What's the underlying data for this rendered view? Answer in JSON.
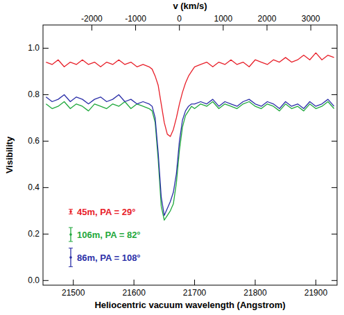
{
  "chart_data": {
    "type": "line",
    "x_label": "Heliocentric vacuum wavelength (Angstrom)",
    "y_label": "Visibility",
    "x2_label": "v (km/s)",
    "xlim": [
      21450,
      21935
    ],
    "xticks": [
      21500,
      21600,
      21700,
      21800,
      21900
    ],
    "x2lim": [
      -3115,
      3600
    ],
    "x2ticks": [
      -2000,
      -1000,
      0,
      1000,
      2000,
      3000
    ],
    "ylim": [
      -0.02,
      1.1
    ],
    "yticks": [
      {
        "value": 0,
        "label": "0.0"
      },
      0.2,
      0.4,
      0.6,
      0.8,
      {
        "value": 1,
        "label": "1.0"
      }
    ],
    "legend": "lower left",
    "x": [
      21455,
      21465,
      21475,
      21485,
      21495,
      21505,
      21515,
      21525,
      21535,
      21545,
      21555,
      21565,
      21575,
      21585,
      21595,
      21605,
      21615,
      21625,
      21630,
      21635,
      21640,
      21645,
      21650,
      21655,
      21660,
      21665,
      21670,
      21675,
      21680,
      21685,
      21690,
      21695,
      21700,
      21710,
      21720,
      21730,
      21740,
      21750,
      21760,
      21770,
      21780,
      21790,
      21800,
      21810,
      21820,
      21830,
      21840,
      21850,
      21860,
      21870,
      21880,
      21890,
      21900,
      21910,
      21920,
      21930
    ],
    "series": [
      {
        "name": "45m, PA = 29°",
        "color": "#e8202a",
        "error": 0.01,
        "values": [
          0.94,
          0.93,
          0.95,
          0.92,
          0.94,
          0.93,
          0.95,
          0.93,
          0.94,
          0.92,
          0.94,
          0.93,
          0.95,
          0.93,
          0.94,
          0.92,
          0.93,
          0.92,
          0.91,
          0.88,
          0.84,
          0.76,
          0.68,
          0.63,
          0.62,
          0.65,
          0.7,
          0.76,
          0.81,
          0.85,
          0.88,
          0.9,
          0.92,
          0.93,
          0.94,
          0.92,
          0.94,
          0.93,
          0.95,
          0.93,
          0.94,
          0.92,
          0.95,
          0.94,
          0.93,
          0.95,
          0.94,
          0.96,
          0.94,
          0.95,
          0.97,
          0.95,
          0.98,
          0.95,
          0.97,
          0.96
        ]
      },
      {
        "name": "106m, PA = 82°",
        "color": "#1fa83c",
        "error": 0.03,
        "values": [
          0.76,
          0.74,
          0.75,
          0.77,
          0.74,
          0.76,
          0.75,
          0.73,
          0.76,
          0.75,
          0.74,
          0.76,
          0.75,
          0.77,
          0.74,
          0.76,
          0.75,
          0.74,
          0.73,
          0.68,
          0.52,
          0.32,
          0.26,
          0.28,
          0.3,
          0.33,
          0.42,
          0.56,
          0.66,
          0.71,
          0.73,
          0.75,
          0.74,
          0.76,
          0.75,
          0.77,
          0.74,
          0.76,
          0.75,
          0.74,
          0.76,
          0.77,
          0.75,
          0.74,
          0.76,
          0.75,
          0.73,
          0.76,
          0.74,
          0.75,
          0.73,
          0.76,
          0.74,
          0.75,
          0.77,
          0.74
        ]
      },
      {
        "name": "86m, PA = 108°",
        "color": "#2b2fa8",
        "error": 0.04,
        "values": [
          0.79,
          0.77,
          0.78,
          0.8,
          0.77,
          0.79,
          0.78,
          0.76,
          0.78,
          0.79,
          0.77,
          0.78,
          0.8,
          0.77,
          0.78,
          0.76,
          0.77,
          0.76,
          0.75,
          0.7,
          0.55,
          0.36,
          0.28,
          0.31,
          0.34,
          0.38,
          0.46,
          0.6,
          0.69,
          0.73,
          0.75,
          0.76,
          0.76,
          0.77,
          0.76,
          0.78,
          0.75,
          0.77,
          0.76,
          0.75,
          0.77,
          0.78,
          0.76,
          0.75,
          0.77,
          0.76,
          0.74,
          0.77,
          0.75,
          0.76,
          0.74,
          0.77,
          0.75,
          0.76,
          0.78,
          0.75
        ]
      }
    ]
  }
}
